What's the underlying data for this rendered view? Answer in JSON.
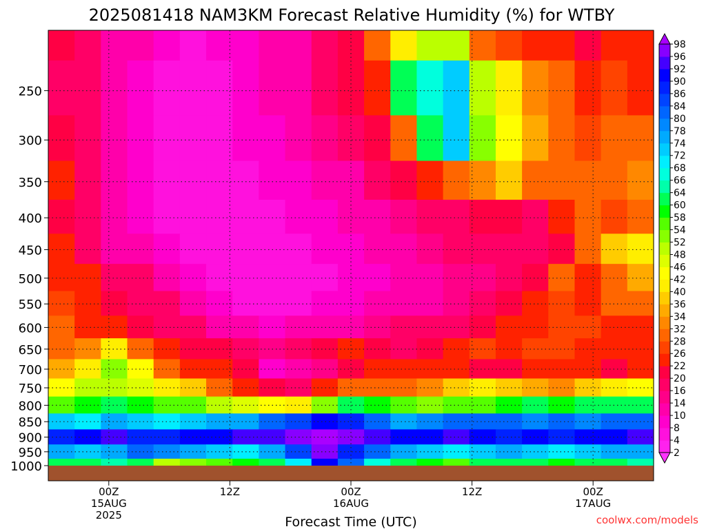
{
  "chart_data": {
    "type": "heatmap",
    "title": "2025081418 NAM3KM Forecast Relative Humidity (%) for WTBY",
    "xlabel": "Forecast Time (UTC)",
    "ylabel": "",
    "x_unit": "hours since 2025-08-14 18Z",
    "xlim": [
      0,
      60
    ],
    "y_scale": "log",
    "ylim": [
      1000,
      200
    ],
    "y_ticks": [
      250,
      300,
      350,
      400,
      450,
      500,
      550,
      600,
      650,
      700,
      750,
      800,
      850,
      900,
      950,
      1000
    ],
    "x_ticks": [
      {
        "x": 6,
        "lines": [
          "00Z",
          "15AUG",
          "2025"
        ]
      },
      {
        "x": 18,
        "lines": [
          "12Z"
        ]
      },
      {
        "x": 30,
        "lines": [
          "00Z",
          "16AUG"
        ]
      },
      {
        "x": 42,
        "lines": [
          "12Z"
        ]
      },
      {
        "x": 54,
        "lines": [
          "00Z",
          "17AUG"
        ]
      }
    ],
    "grid": true,
    "credit": "coolwx.com/models",
    "colorbar": {
      "levels": [
        2,
        4,
        8,
        10,
        14,
        16,
        20,
        22,
        26,
        28,
        32,
        34,
        36,
        40,
        42,
        46,
        48,
        52,
        54,
        58,
        60,
        64,
        66,
        68,
        72,
        74,
        78,
        80,
        84,
        86,
        90,
        92,
        96,
        98
      ],
      "colors": [
        "#ff33ff",
        "#ff22ee",
        "#ff11dd",
        "#ff00cc",
        "#ff00aa",
        "#ff0088",
        "#ff0066",
        "#ff0044",
        "#ff2200",
        "#ff4400",
        "#ff6600",
        "#ff8800",
        "#ffaa00",
        "#ffcc00",
        "#ffee00",
        "#ffff00",
        "#ddff00",
        "#bbff00",
        "#88ff00",
        "#55ff00",
        "#00ff00",
        "#00ff55",
        "#00ffaa",
        "#00ffdd",
        "#00eeff",
        "#00ccff",
        "#00aaff",
        "#0088ff",
        "#0066ff",
        "#0044ff",
        "#0022ff",
        "#0000ff",
        "#4400ff",
        "#8800ff",
        "#aa00ff"
      ]
    },
    "rows": [
      {
        "p": 200,
        "rh": [
          20,
          18,
          10,
          10,
          8,
          6,
          8,
          8,
          10,
          12,
          18,
          20,
          28,
          40,
          50,
          48,
          30,
          26,
          24,
          22,
          20,
          24,
          22
        ]
      },
      {
        "p": 250,
        "rh": [
          18,
          16,
          10,
          8,
          6,
          6,
          6,
          8,
          10,
          12,
          16,
          20,
          24,
          60,
          66,
          72,
          50,
          40,
          32,
          28,
          24,
          26,
          24
        ]
      },
      {
        "p": 300,
        "rh": [
          20,
          16,
          10,
          8,
          6,
          6,
          6,
          8,
          8,
          10,
          14,
          16,
          20,
          28,
          60,
          72,
          52,
          42,
          34,
          30,
          26,
          28,
          30
        ]
      },
      {
        "p": 350,
        "rh": [
          22,
          16,
          10,
          8,
          6,
          6,
          6,
          6,
          8,
          8,
          10,
          12,
          16,
          20,
          24,
          28,
          32,
          36,
          30,
          28,
          28,
          30,
          32
        ]
      },
      {
        "p": 400,
        "rh": [
          20,
          16,
          10,
          8,
          6,
          4,
          4,
          6,
          6,
          8,
          8,
          10,
          12,
          14,
          16,
          18,
          20,
          20,
          18,
          22,
          28,
          26,
          28
        ]
      },
      {
        "p": 450,
        "rh": [
          22,
          18,
          12,
          10,
          8,
          6,
          4,
          4,
          4,
          6,
          8,
          8,
          10,
          12,
          14,
          16,
          16,
          16,
          18,
          20,
          30,
          36,
          40
        ]
      },
      {
        "p": 500,
        "rh": [
          24,
          22,
          18,
          16,
          10,
          8,
          6,
          4,
          4,
          6,
          6,
          8,
          8,
          10,
          12,
          14,
          14,
          16,
          20,
          28,
          22,
          30,
          34
        ]
      },
      {
        "p": 550,
        "rh": [
          26,
          24,
          20,
          18,
          16,
          12,
          8,
          6,
          6,
          6,
          8,
          8,
          10,
          10,
          12,
          14,
          16,
          20,
          22,
          26,
          24,
          28,
          30
        ]
      },
      {
        "p": 600,
        "rh": [
          28,
          24,
          22,
          20,
          18,
          18,
          12,
          10,
          8,
          10,
          10,
          12,
          14,
          16,
          16,
          18,
          20,
          22,
          24,
          26,
          26,
          24,
          22
        ]
      },
      {
        "p": 650,
        "rh": [
          30,
          32,
          40,
          28,
          22,
          20,
          20,
          16,
          14,
          16,
          20,
          22,
          20,
          18,
          20,
          22,
          26,
          24,
          26,
          26,
          24,
          22,
          22
        ]
      },
      {
        "p": 700,
        "rh": [
          34,
          40,
          52,
          44,
          30,
          24,
          22,
          20,
          8,
          10,
          14,
          20,
          22,
          22,
          24,
          22,
          20,
          20,
          22,
          24,
          22,
          20,
          22
        ]
      },
      {
        "p": 750,
        "rh": [
          44,
          48,
          50,
          46,
          40,
          36,
          28,
          22,
          20,
          16,
          22,
          28,
          28,
          30,
          32,
          36,
          40,
          38,
          34,
          32,
          36,
          40,
          42
        ]
      },
      {
        "p": 800,
        "rh": [
          56,
          58,
          60,
          58,
          56,
          54,
          50,
          46,
          42,
          40,
          52,
          60,
          58,
          54,
          52,
          54,
          56,
          58,
          60,
          58,
          60,
          62,
          60
        ]
      },
      {
        "p": 850,
        "rh": [
          72,
          70,
          74,
          72,
          70,
          72,
          74,
          76,
          80,
          84,
          90,
          86,
          80,
          76,
          78,
          80,
          82,
          80,
          78,
          80,
          78,
          80,
          82
        ]
      },
      {
        "p": 900,
        "rh": [
          88,
          90,
          92,
          86,
          88,
          90,
          90,
          92,
          94,
          96,
          98,
          96,
          92,
          90,
          90,
          92,
          90,
          88,
          90,
          88,
          90,
          90,
          92
        ]
      },
      {
        "p": 950,
        "rh": [
          74,
          72,
          76,
          80,
          78,
          76,
          72,
          70,
          74,
          84,
          96,
          88,
          80,
          74,
          72,
          70,
          72,
          74,
          72,
          70,
          72,
          74,
          76
        ]
      },
      {
        "p": 1000,
        "rh": [
          62,
          60,
          64,
          60,
          50,
          52,
          56,
          58,
          62,
          70,
          90,
          80,
          66,
          60,
          58,
          56,
          60,
          62,
          60,
          58,
          60,
          62,
          64
        ]
      }
    ]
  }
}
